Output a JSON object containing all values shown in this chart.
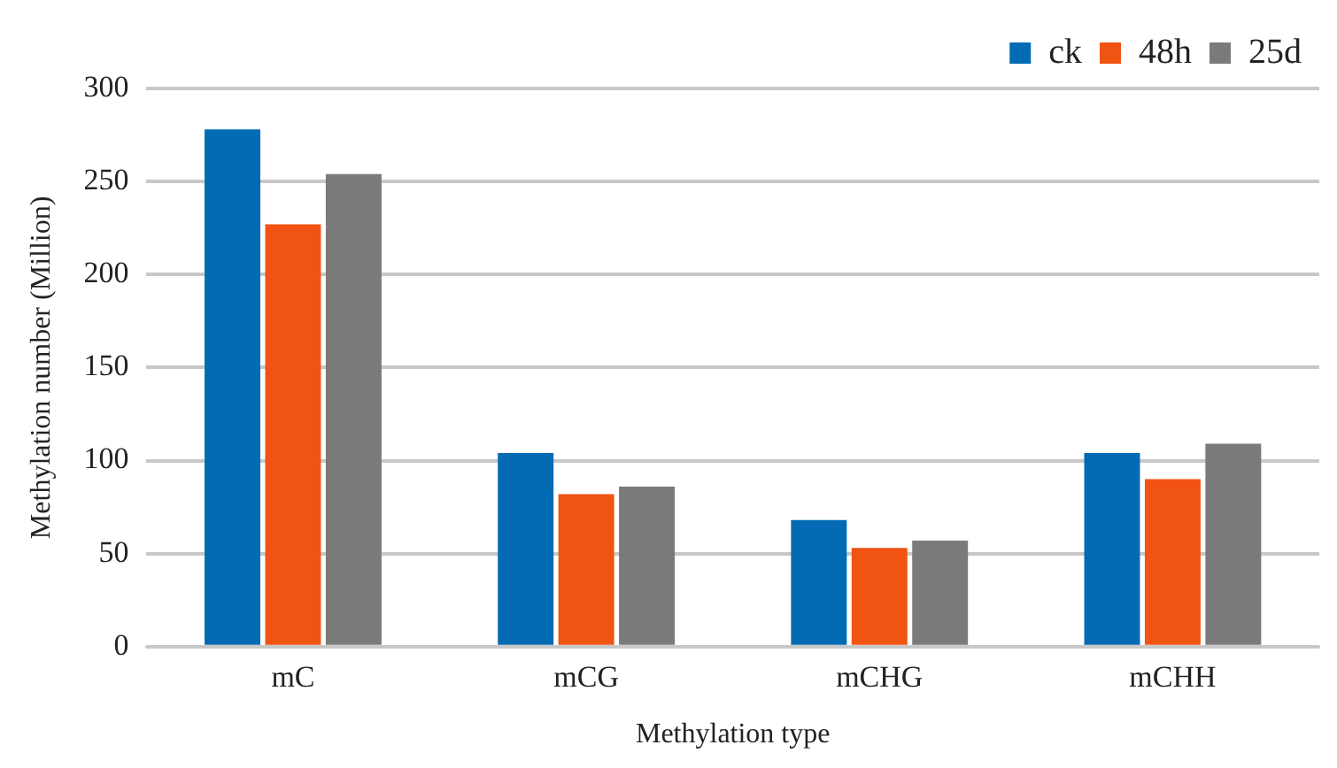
{
  "chart_data": {
    "type": "bar",
    "xlabel": "Methylation type",
    "ylabel": "Methylation number (Million)",
    "categories": [
      "mC",
      "mCG",
      "mCHG",
      "mCHH"
    ],
    "series": [
      {
        "name": "ck",
        "color": "#026bb3",
        "values": [
          278,
          104,
          68,
          104
        ]
      },
      {
        "name": "48h",
        "color": "#f15312",
        "values": [
          227,
          82,
          53,
          90
        ]
      },
      {
        "name": "25d",
        "color": "#7a7a7a",
        "values": [
          254,
          86,
          57,
          109
        ]
      }
    ],
    "ylim": [
      0,
      300
    ],
    "yticks": [
      0,
      50,
      100,
      150,
      200,
      250,
      300
    ],
    "grid": "y",
    "legend": "top right"
  }
}
